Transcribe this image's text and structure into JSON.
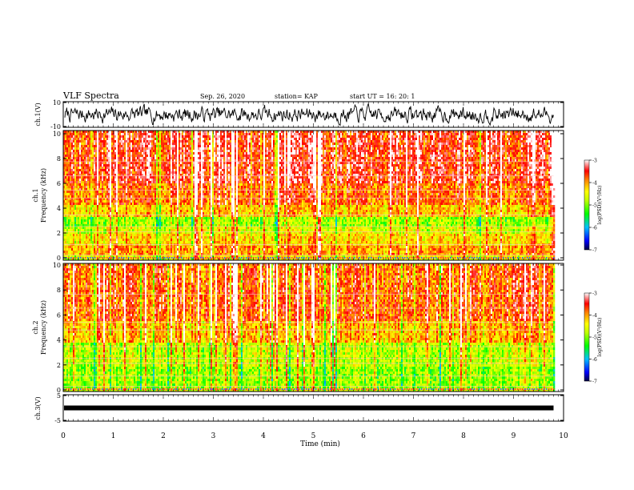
{
  "header": {
    "title": "VLF Spectra",
    "date": "Sep. 26, 2020",
    "station": "station= KAP",
    "start": "start  UT =   16: 20: 1"
  },
  "colors": {
    "scale": [
      "#000080",
      "#0000ff",
      "#00a0ff",
      "#00e0e0",
      "#00ff00",
      "#a0ff00",
      "#ffff00",
      "#ffb000",
      "#ff6000",
      "#ff0000",
      "#ffffff"
    ],
    "trace": "#000000",
    "background": "#ffffff"
  },
  "chart_data": [
    {
      "type": "line",
      "name": "ch1-waveform",
      "ylabel": "ch.1(V)",
      "ylim": [
        -10,
        10
      ],
      "y_ticks": [
        "10",
        "-10"
      ],
      "xlim": [
        0,
        10
      ]
    },
    {
      "type": "heatmap",
      "name": "ch1-spectrogram",
      "ylabel": "ch.1\nFrequency (kHz)",
      "ylim": [
        0,
        10
      ],
      "xlim": [
        0,
        10
      ],
      "y_ticks": [
        "0",
        "2",
        "4",
        "6",
        "8",
        "10"
      ],
      "data_end_min": 9.8,
      "colorbar": {
        "label": "log(PSD)(V²/Hz)",
        "range": [
          -7,
          -3
        ],
        "ticks": [
          "-3",
          "-4",
          "-5",
          "-6",
          "-7"
        ]
      },
      "bands_khz": [
        {
          "range": [
            0.0,
            0.3
          ],
          "level": -4.5
        },
        {
          "range": [
            0.3,
            1.2
          ],
          "level": -4.0
        },
        {
          "range": [
            1.2,
            2.0
          ],
          "level": -4.3
        },
        {
          "range": [
            2.0,
            2.6
          ],
          "level": -4.6
        },
        {
          "range": [
            2.6,
            3.4
          ],
          "level": -4.9
        },
        {
          "range": [
            3.4,
            4.2
          ],
          "level": -4.2
        },
        {
          "range": [
            4.2,
            6.0
          ],
          "level": -3.8
        },
        {
          "range": [
            6.0,
            10.0
          ],
          "level": -3.5
        }
      ]
    },
    {
      "type": "heatmap",
      "name": "ch2-spectrogram",
      "ylabel": "ch.2\nFrequency (kHz)",
      "ylim": [
        0,
        10
      ],
      "xlim": [
        0,
        10
      ],
      "y_ticks": [
        "0",
        "2",
        "4",
        "6",
        "8",
        "10"
      ],
      "data_end_min": 9.8,
      "colorbar": {
        "label": "log(PSD)(V²/Hz)",
        "range": [
          -7,
          -3
        ],
        "ticks": [
          "-3",
          "-4",
          "-5",
          "-6",
          "-7"
        ]
      },
      "bands_khz": [
        {
          "range": [
            0.0,
            0.3
          ],
          "level": -4.6
        },
        {
          "range": [
            0.3,
            2.0
          ],
          "level": -4.9
        },
        {
          "range": [
            2.0,
            3.8
          ],
          "level": -4.7
        },
        {
          "range": [
            3.8,
            5.5
          ],
          "level": -4.1
        },
        {
          "range": [
            5.5,
            10.0
          ],
          "level": -3.7
        }
      ]
    },
    {
      "type": "line",
      "name": "ch3-waveform",
      "ylabel": "ch.3(V)",
      "ylim": [
        -5,
        5
      ],
      "y_ticks": [
        "5",
        "-5"
      ],
      "xlim": [
        0,
        10
      ],
      "constant_level_v": 0,
      "xlabel": "Time (min)",
      "x_ticks": [
        "0",
        "1",
        "2",
        "3",
        "4",
        "5",
        "6",
        "7",
        "8",
        "9",
        "10"
      ]
    }
  ]
}
